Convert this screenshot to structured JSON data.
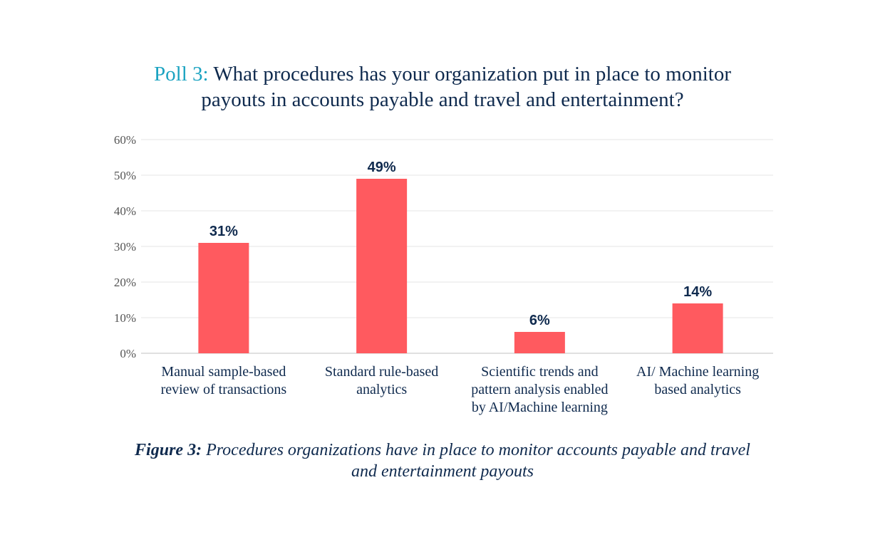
{
  "heading": {
    "label": "Poll 3:",
    "text": "What procedures has your organization put in place to monitor payouts in accounts payable and travel and entertainment?"
  },
  "caption": {
    "label": "Figure 3:",
    "text": "Procedures organizations have in place to monitor accounts payable and travel and entertainment payouts"
  },
  "colors": {
    "bar": "#ff5a5f",
    "value_label": "#0f2a4e",
    "poll_label": "#1ba3c1",
    "axis_text": "#555555",
    "grid": "#e6e6e6"
  },
  "chart_data": {
    "type": "bar",
    "categories": [
      [
        "Manual sample-based",
        "review of transactions"
      ],
      [
        "Standard rule-based",
        "analytics"
      ],
      [
        "Scientific trends and",
        "pattern analysis enabled",
        "by AI/Machine learning"
      ],
      [
        "AI/ Machine learning",
        "based analytics"
      ]
    ],
    "values": [
      31,
      49,
      6,
      14
    ],
    "data_labels": [
      "31%",
      "49%",
      "6%",
      "14%"
    ],
    "ylim": [
      0,
      60
    ],
    "yticks": [
      0,
      10,
      20,
      30,
      40,
      50,
      60
    ],
    "ytick_labels": [
      "0%",
      "10%",
      "20%",
      "30%",
      "40%",
      "50%",
      "60%"
    ],
    "grid": true,
    "legend": "none"
  }
}
